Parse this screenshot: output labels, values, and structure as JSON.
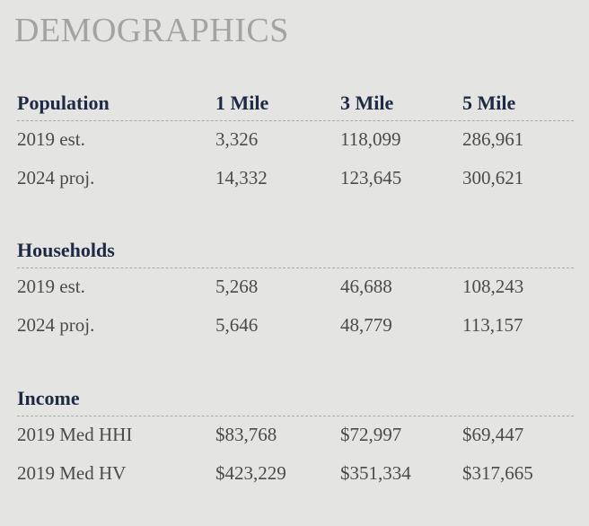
{
  "title": "DEMOGRAPHICS",
  "columns": [
    "1 Mile",
    "3 Mile",
    "5 Mile"
  ],
  "sections": [
    {
      "name": "Population",
      "rows": [
        {
          "label": "2019 est.",
          "values": [
            "3,326",
            "118,099",
            "286,961"
          ]
        },
        {
          "label": "2024 proj.",
          "values": [
            "14,332",
            "123,645",
            "300,621"
          ]
        }
      ]
    },
    {
      "name": "Households",
      "rows": [
        {
          "label": "2019 est.",
          "values": [
            "5,268",
            "46,688",
            "108,243"
          ]
        },
        {
          "label": "2024 proj.",
          "values": [
            "5,646",
            "48,779",
            "113,157"
          ]
        }
      ]
    },
    {
      "name": "Income",
      "rows": [
        {
          "label": "2019 Med HHI",
          "values": [
            "$83,768",
            "$72,997",
            "$69,447"
          ]
        },
        {
          "label": "2019 Med HV",
          "values": [
            "$423,229",
            "$351,334",
            "$317,665"
          ]
        }
      ]
    }
  ]
}
